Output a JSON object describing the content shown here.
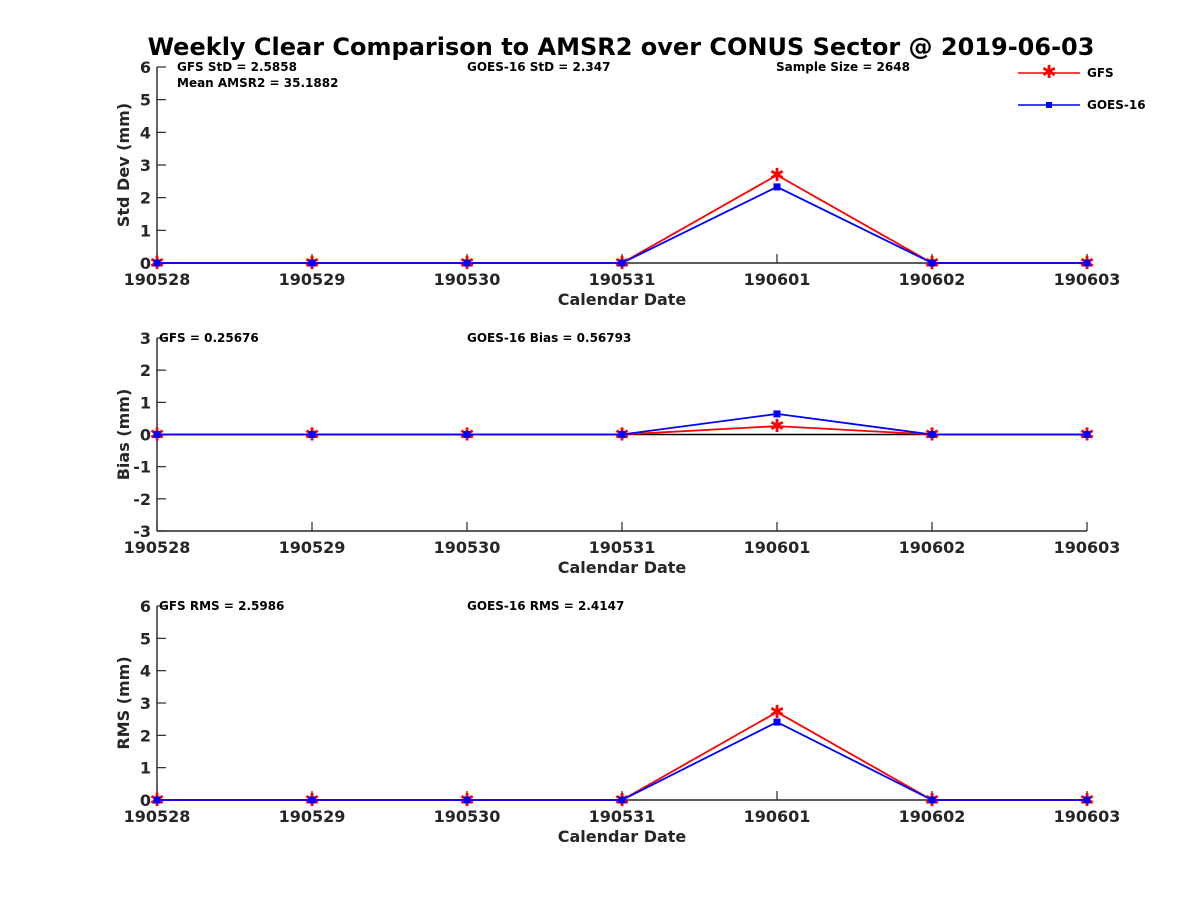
{
  "chart_data": {
    "title": "Weekly Clear Comparison to AMSR2 over CONUS Sector @ 2019-06-03",
    "legend": {
      "placement": "top-right",
      "entries": [
        {
          "name": "GFS",
          "color": "#ff0000",
          "marker": "asterisk"
        },
        {
          "name": "GOES-16",
          "color": "#0000ff",
          "marker": "square"
        }
      ]
    },
    "panels": [
      {
        "type": "line",
        "xlabel": "Calendar Date",
        "ylabel": "Std Dev (mm)",
        "ylim": [
          0,
          6
        ],
        "yticks": [
          "0",
          "1",
          "2",
          "3",
          "4",
          "5",
          "6"
        ],
        "categories": [
          "190528",
          "190529",
          "190530",
          "190531",
          "190601",
          "190602",
          "190603"
        ],
        "zero_line": false,
        "annotations": [
          "GFS StD = 2.5858",
          "Mean AMSR2 = 35.1882",
          "GOES-16 StD = 2.347",
          "Sample Size = 2648"
        ],
        "series": [
          {
            "name": "GFS",
            "values": [
              0,
              0,
              0,
              0,
              2.69,
              0,
              0
            ]
          },
          {
            "name": "GOES-16",
            "values": [
              0,
              0,
              0,
              0,
              2.33,
              0,
              0
            ]
          }
        ]
      },
      {
        "type": "line",
        "xlabel": "Calendar Date",
        "ylabel": "Bias (mm)",
        "ylim": [
          -3,
          3
        ],
        "yticks": [
          "-3",
          "-2",
          "-1",
          "0",
          "1",
          "2",
          "3"
        ],
        "categories": [
          "190528",
          "190529",
          "190530",
          "190531",
          "190601",
          "190602",
          "190603"
        ],
        "zero_line": true,
        "annotations": [
          "GFS = 0.25676",
          "GOES-16 Bias  = 0.56793"
        ],
        "series": [
          {
            "name": "GFS",
            "values": [
              0,
              0,
              0,
              0,
              0.26,
              0,
              0
            ]
          },
          {
            "name": "GOES-16",
            "values": [
              0,
              0,
              0,
              0,
              0.64,
              0,
              0
            ]
          }
        ]
      },
      {
        "type": "line",
        "xlabel": "Calendar Date",
        "ylabel": "RMS (mm)",
        "ylim": [
          0,
          6
        ],
        "yticks": [
          "0",
          "1",
          "2",
          "3",
          "4",
          "5",
          "6"
        ],
        "categories": [
          "190528",
          "190529",
          "190530",
          "190531",
          "190601",
          "190602",
          "190603"
        ],
        "zero_line": false,
        "annotations": [
          "GFS RMS = 2.5986",
          "GOES-16 RMS = 2.4147"
        ],
        "series": [
          {
            "name": "GFS",
            "values": [
              0,
              0,
              0,
              0,
              2.72,
              0,
              0
            ]
          },
          {
            "name": "GOES-16",
            "values": [
              0,
              0,
              0,
              0,
              2.41,
              0,
              0
            ]
          }
        ]
      }
    ]
  }
}
